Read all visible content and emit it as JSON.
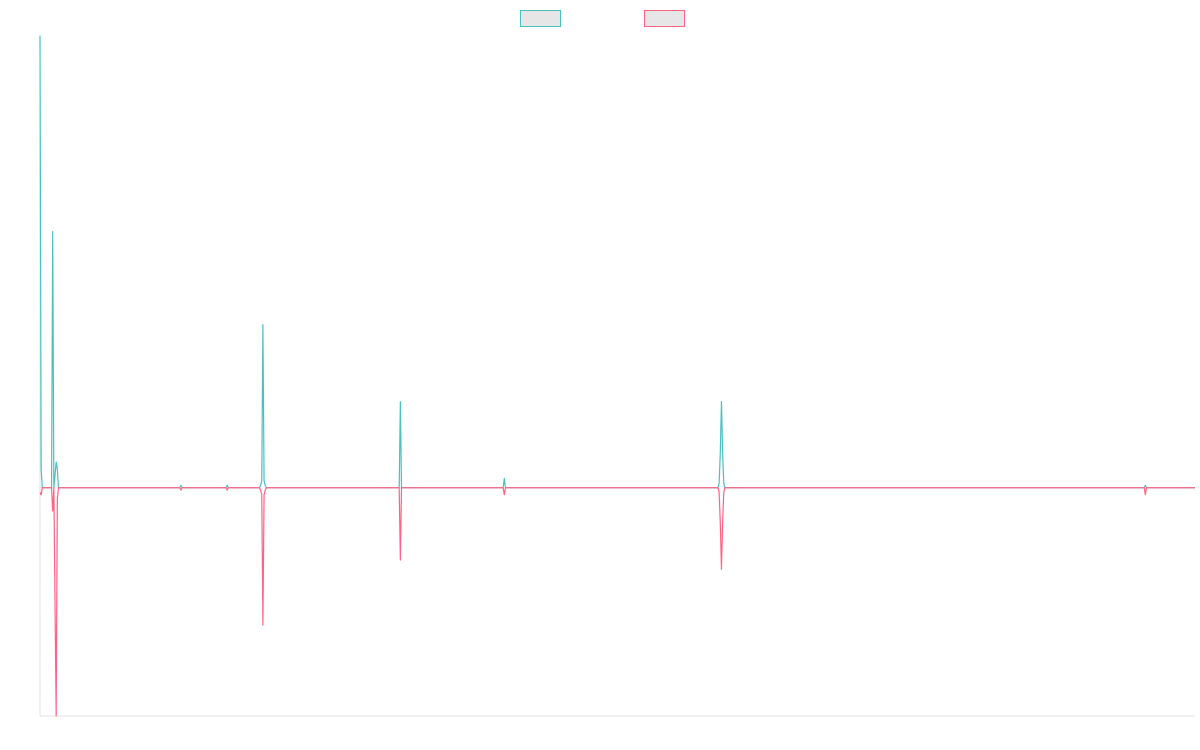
{
  "chart_data": {
    "type": "line",
    "title": "",
    "xlabel": "",
    "ylabel": "",
    "xlim": [
      0,
      1000
    ],
    "ylim": [
      -98,
      194
    ],
    "grid": false,
    "legend": {
      "placement": "top-center",
      "entries": [
        {
          "label": "",
          "color": "#4bc0c0"
        },
        {
          "label": "",
          "color": "#ff6384"
        }
      ]
    },
    "x": [
      0,
      1,
      2,
      3,
      4,
      10,
      11,
      12,
      14,
      15,
      16,
      17,
      19,
      20,
      120,
      121,
      122,
      123,
      124,
      125,
      160,
      161,
      162,
      163,
      164,
      188,
      189,
      190,
      191,
      192,
      193,
      194,
      195,
      196,
      197,
      198,
      199,
      200,
      201,
      310,
      311,
      312,
      313,
      314,
      400,
      401,
      402,
      403,
      404,
      585,
      586,
      587,
      588,
      589,
      590,
      591,
      592,
      593,
      594,
      955,
      956,
      957,
      958,
      959,
      1000
    ],
    "series": [
      {
        "color": "#4bc0c0",
        "values": [
          194,
          8,
          0,
          0,
          0,
          0,
          110,
          0,
          11,
          8,
          0,
          0,
          0,
          0,
          0,
          0,
          1,
          0,
          0,
          0,
          0,
          0,
          1,
          0,
          0,
          0,
          0,
          0,
          1,
          3,
          70,
          3,
          1,
          0,
          0,
          0,
          0,
          0,
          0,
          0,
          0,
          37,
          0,
          0,
          0,
          0,
          4,
          0,
          0,
          0,
          0,
          0,
          2,
          15,
          37,
          15,
          2,
          0,
          0,
          0,
          0,
          1,
          0,
          0,
          0
        ]
      },
      {
        "color": "#ff6384",
        "values": [
          -2,
          -3,
          0,
          0,
          0,
          0,
          -10,
          0,
          -98,
          -5,
          0,
          0,
          0,
          0,
          0,
          0,
          -1,
          0,
          0,
          0,
          0,
          0,
          -1,
          0,
          0,
          0,
          0,
          0,
          -1,
          -3,
          -59,
          -3,
          -1,
          0,
          0,
          0,
          0,
          0,
          0,
          0,
          0,
          -31,
          0,
          0,
          0,
          0,
          -3,
          0,
          0,
          0,
          0,
          0,
          -2,
          -15,
          -35,
          -15,
          -2,
          0,
          0,
          0,
          0,
          -3,
          0,
          0,
          0
        ]
      }
    ]
  }
}
